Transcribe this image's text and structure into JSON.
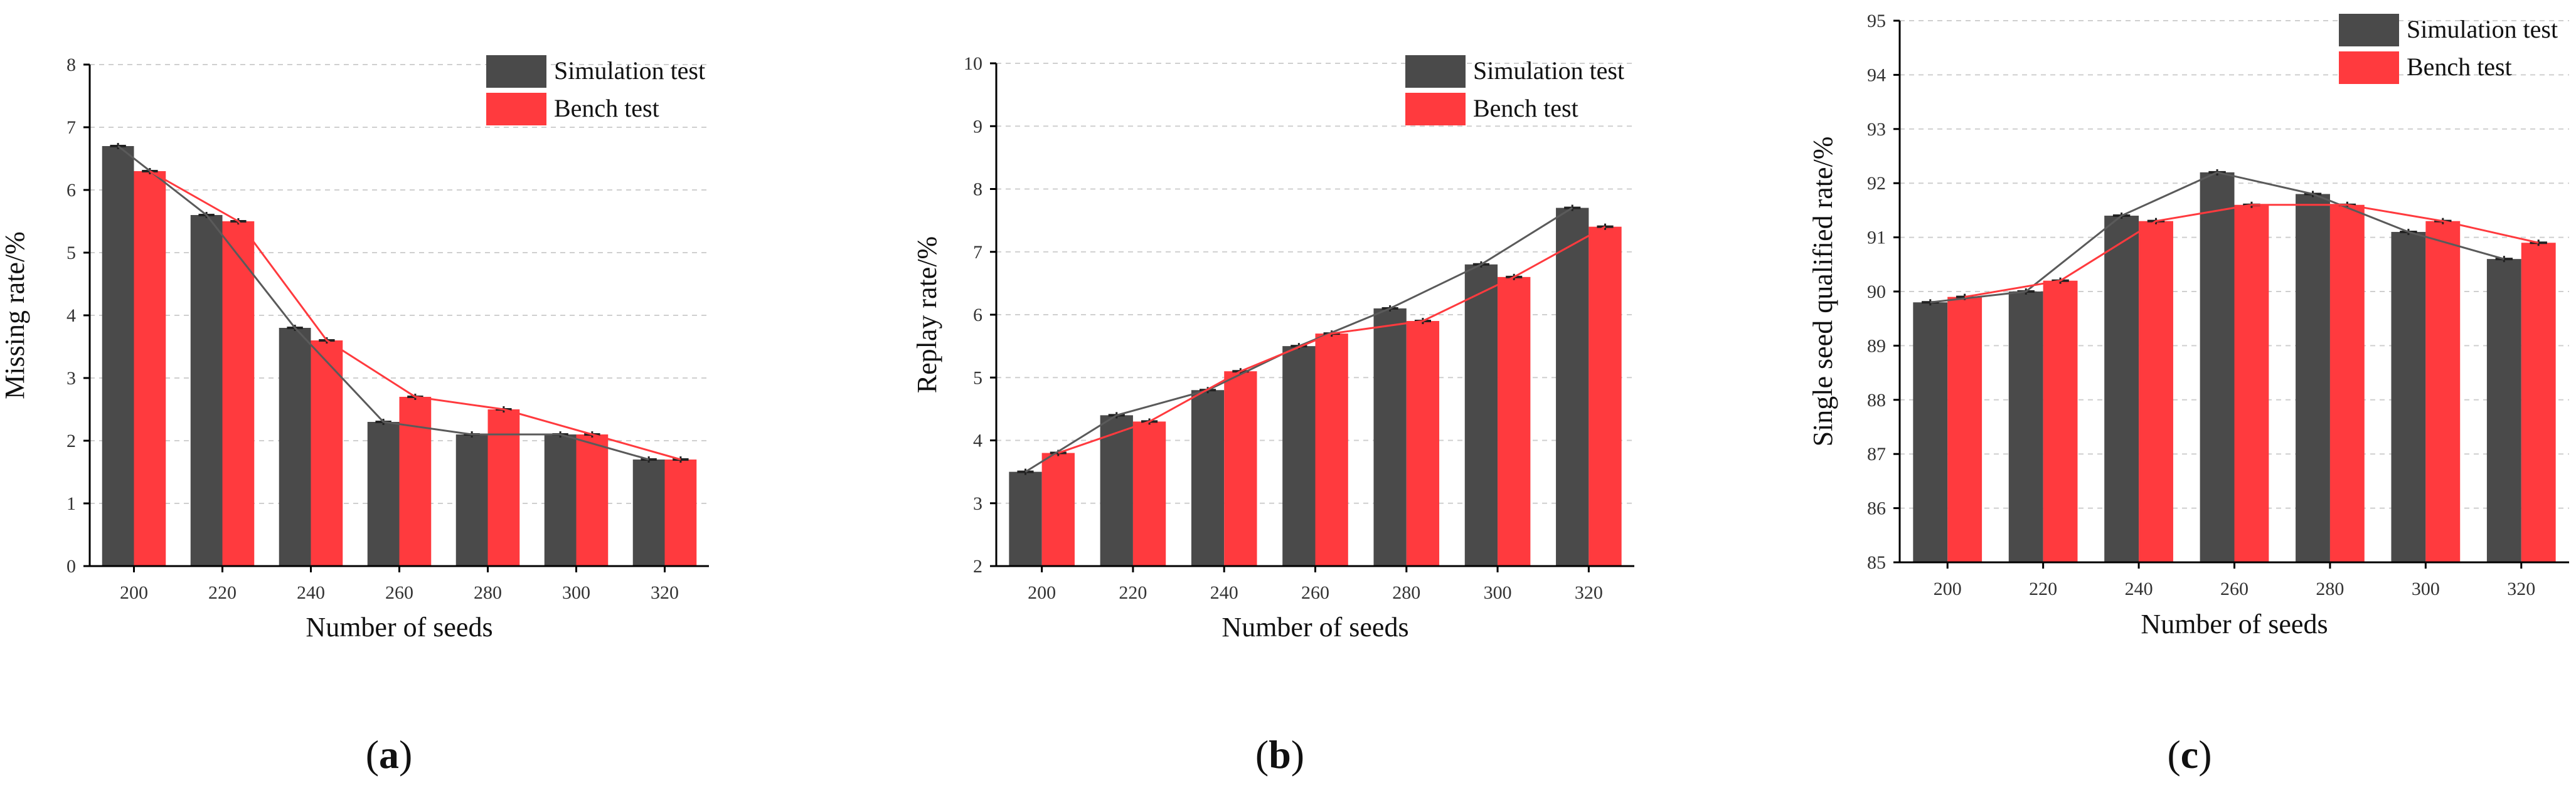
{
  "chart_data": [
    {
      "type": "bar",
      "panel": "a",
      "categories": [
        "200",
        "220",
        "240",
        "260",
        "280",
        "300",
        "320"
      ],
      "series": [
        {
          "name": "Simulation test",
          "color": "#4a4a4a",
          "values": [
            6.7,
            5.6,
            3.8,
            2.3,
            2.1,
            2.1,
            1.7
          ]
        },
        {
          "name": "Bench test",
          "color": "#ff3a3e",
          "values": [
            6.3,
            5.5,
            3.6,
            2.7,
            2.5,
            2.1,
            1.7
          ]
        }
      ],
      "trend_lines": true,
      "xlabel": "Number of seeds",
      "ylabel": "Missing rate/%",
      "ylim": [
        0,
        8
      ],
      "yticks": [
        0,
        1,
        2,
        3,
        4,
        5,
        6,
        7,
        8
      ],
      "grid": "horizontal dashed",
      "legend": "top-right"
    },
    {
      "type": "bar",
      "panel": "b",
      "categories": [
        "200",
        "220",
        "240",
        "260",
        "280",
        "300",
        "320"
      ],
      "series": [
        {
          "name": "Simulation test",
          "color": "#4a4a4a",
          "values": [
            3.5,
            4.4,
            4.8,
            5.5,
            6.1,
            6.8,
            7.7
          ]
        },
        {
          "name": "Bench test",
          "color": "#ff3a3e",
          "values": [
            3.8,
            4.3,
            5.1,
            5.7,
            5.9,
            6.6,
            7.4
          ]
        }
      ],
      "trend_lines": true,
      "xlabel": "Number of seeds",
      "ylabel": "Replay rate/%",
      "ylim": [
        2,
        10
      ],
      "yticks": [
        2,
        3,
        4,
        5,
        6,
        7,
        8,
        9,
        10
      ],
      "grid": "horizontal dashed",
      "legend": "top-right"
    },
    {
      "type": "bar",
      "panel": "c",
      "categories": [
        "200",
        "220",
        "240",
        "260",
        "280",
        "300",
        "320"
      ],
      "series": [
        {
          "name": "Simulation test",
          "color": "#4a4a4a",
          "values": [
            89.8,
            90.0,
            91.4,
            92.2,
            91.8,
            91.1,
            90.6
          ]
        },
        {
          "name": "Bench test",
          "color": "#ff3a3e",
          "values": [
            89.9,
            90.2,
            91.3,
            91.6,
            91.6,
            91.3,
            90.9
          ]
        }
      ],
      "trend_lines": true,
      "xlabel": "Number of seeds",
      "ylabel": "Single seed qualified rate/%",
      "ylim": [
        85,
        95
      ],
      "yticks": [
        85,
        86,
        87,
        88,
        89,
        90,
        91,
        92,
        93,
        94,
        95
      ],
      "grid": "horizontal dashed",
      "legend": "top-right"
    }
  ],
  "panel_labels": [
    {
      "open": "(",
      "letter": "a",
      "close": ")"
    },
    {
      "open": "(",
      "letter": "b",
      "close": ")"
    },
    {
      "open": "(",
      "letter": "c",
      "close": ")"
    }
  ]
}
